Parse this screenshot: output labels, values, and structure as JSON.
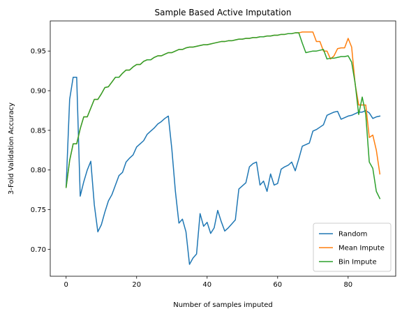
{
  "chart_data": {
    "type": "line",
    "title": "Sample Based Active Imputation",
    "xlabel": "Number of samples imputed",
    "ylabel": "3-Fold Validation Accuracy",
    "xlim": [
      -4.5,
      93.5
    ],
    "ylim": [
      0.666,
      0.988
    ],
    "xticks": [
      0,
      20,
      40,
      60,
      80
    ],
    "xtick_labels": [
      "0",
      "20",
      "40",
      "60",
      "80"
    ],
    "yticks": [
      0.7,
      0.75,
      0.8,
      0.85,
      0.9,
      0.95
    ],
    "ytick_labels": [
      "0.70",
      "0.75",
      "0.80",
      "0.85",
      "0.90",
      "0.95"
    ],
    "grid": false,
    "legend_position": "lower-right",
    "series": [
      {
        "name": "Random",
        "color": "#1f77b4",
        "x": [
          0,
          1,
          2,
          3,
          4,
          5,
          6,
          7,
          8,
          9,
          10,
          11,
          12,
          13,
          14,
          15,
          16,
          17,
          18,
          19,
          20,
          21,
          22,
          23,
          24,
          25,
          26,
          27,
          28,
          29,
          30,
          31,
          32,
          33,
          34,
          35,
          36,
          37,
          38,
          39,
          40,
          41,
          42,
          43,
          44,
          45,
          46,
          47,
          48,
          49,
          50,
          51,
          52,
          53,
          54,
          55,
          56,
          57,
          58,
          59,
          60,
          61,
          62,
          63,
          64,
          65,
          66,
          67,
          68,
          69,
          70,
          71,
          72,
          73,
          74,
          75,
          76,
          77,
          78,
          79,
          80,
          81,
          82,
          83,
          84,
          85,
          86,
          87,
          88,
          89
        ],
        "y": [
          0.778,
          0.889,
          0.917,
          0.917,
          0.767,
          0.785,
          0.8,
          0.811,
          0.756,
          0.722,
          0.731,
          0.747,
          0.761,
          0.769,
          0.781,
          0.793,
          0.797,
          0.81,
          0.815,
          0.819,
          0.829,
          0.833,
          0.837,
          0.845,
          0.849,
          0.853,
          0.858,
          0.861,
          0.865,
          0.868,
          0.826,
          0.773,
          0.733,
          0.738,
          0.722,
          0.681,
          0.689,
          0.694,
          0.745,
          0.729,
          0.734,
          0.72,
          0.727,
          0.749,
          0.735,
          0.723,
          0.727,
          0.732,
          0.737,
          0.776,
          0.78,
          0.784,
          0.804,
          0.808,
          0.81,
          0.781,
          0.786,
          0.773,
          0.795,
          0.781,
          0.783,
          0.801,
          0.804,
          0.806,
          0.81,
          0.799,
          0.814,
          0.83,
          0.832,
          0.834,
          0.849,
          0.851,
          0.854,
          0.857,
          0.869,
          0.871,
          0.873,
          0.874,
          0.864,
          0.866,
          0.868,
          0.869,
          0.871,
          0.873,
          0.873,
          0.875,
          0.872,
          0.865,
          0.867,
          0.868
        ]
      },
      {
        "name": "Mean Impute",
        "color": "#ff7f0e",
        "x": [
          0,
          1,
          2,
          3,
          4,
          5,
          6,
          7,
          8,
          9,
          10,
          11,
          12,
          13,
          14,
          15,
          16,
          17,
          18,
          19,
          20,
          21,
          22,
          23,
          24,
          25,
          26,
          27,
          28,
          29,
          30,
          31,
          32,
          33,
          34,
          35,
          36,
          37,
          38,
          39,
          40,
          41,
          42,
          43,
          44,
          45,
          46,
          47,
          48,
          49,
          50,
          51,
          52,
          53,
          54,
          55,
          56,
          57,
          58,
          59,
          60,
          61,
          62,
          63,
          64,
          65,
          66,
          67,
          68,
          69,
          70,
          71,
          72,
          73,
          74,
          75,
          76,
          77,
          78,
          79,
          80,
          81,
          82,
          83,
          84,
          85,
          86,
          87,
          88,
          89
        ],
        "y": [
          0.778,
          0.812,
          0.833,
          0.833,
          0.852,
          0.867,
          0.867,
          0.878,
          0.889,
          0.889,
          0.896,
          0.904,
          0.905,
          0.911,
          0.917,
          0.917,
          0.922,
          0.926,
          0.926,
          0.93,
          0.933,
          0.933,
          0.937,
          0.939,
          0.939,
          0.942,
          0.944,
          0.944,
          0.946,
          0.948,
          0.948,
          0.95,
          0.952,
          0.952,
          0.954,
          0.955,
          0.955,
          0.956,
          0.957,
          0.958,
          0.958,
          0.959,
          0.96,
          0.961,
          0.962,
          0.962,
          0.963,
          0.963,
          0.964,
          0.965,
          0.965,
          0.966,
          0.966,
          0.967,
          0.967,
          0.968,
          0.968,
          0.969,
          0.969,
          0.97,
          0.97,
          0.971,
          0.971,
          0.972,
          0.972,
          0.973,
          0.973,
          0.974,
          0.974,
          0.974,
          0.974,
          0.962,
          0.962,
          0.95,
          0.95,
          0.94,
          0.944,
          0.953,
          0.954,
          0.954,
          0.966,
          0.955,
          0.908,
          0.882,
          0.882,
          0.882,
          0.841,
          0.844,
          0.825,
          0.795
        ]
      },
      {
        "name": "Bin Impute",
        "color": "#2ca02c",
        "x": [
          0,
          1,
          2,
          3,
          4,
          5,
          6,
          7,
          8,
          9,
          10,
          11,
          12,
          13,
          14,
          15,
          16,
          17,
          18,
          19,
          20,
          21,
          22,
          23,
          24,
          25,
          26,
          27,
          28,
          29,
          30,
          31,
          32,
          33,
          34,
          35,
          36,
          37,
          38,
          39,
          40,
          41,
          42,
          43,
          44,
          45,
          46,
          47,
          48,
          49,
          50,
          51,
          52,
          53,
          54,
          55,
          56,
          57,
          58,
          59,
          60,
          61,
          62,
          63,
          64,
          65,
          66,
          67,
          68,
          69,
          70,
          71,
          72,
          73,
          74,
          75,
          76,
          77,
          78,
          79,
          80,
          81,
          82,
          83,
          84,
          85,
          86,
          87,
          88,
          89
        ],
        "y": [
          0.778,
          0.812,
          0.833,
          0.833,
          0.852,
          0.867,
          0.867,
          0.878,
          0.889,
          0.889,
          0.896,
          0.904,
          0.905,
          0.911,
          0.917,
          0.917,
          0.922,
          0.926,
          0.926,
          0.93,
          0.933,
          0.933,
          0.937,
          0.939,
          0.939,
          0.942,
          0.944,
          0.944,
          0.946,
          0.948,
          0.948,
          0.95,
          0.952,
          0.952,
          0.954,
          0.955,
          0.955,
          0.956,
          0.957,
          0.958,
          0.958,
          0.959,
          0.96,
          0.961,
          0.962,
          0.962,
          0.963,
          0.963,
          0.964,
          0.965,
          0.965,
          0.966,
          0.966,
          0.967,
          0.967,
          0.968,
          0.968,
          0.969,
          0.969,
          0.97,
          0.97,
          0.971,
          0.971,
          0.972,
          0.972,
          0.973,
          0.973,
          0.96,
          0.948,
          0.949,
          0.95,
          0.95,
          0.951,
          0.952,
          0.94,
          0.941,
          0.941,
          0.942,
          0.943,
          0.943,
          0.944,
          0.936,
          0.909,
          0.87,
          0.892,
          0.87,
          0.81,
          0.802,
          0.773,
          0.764
        ]
      }
    ]
  }
}
